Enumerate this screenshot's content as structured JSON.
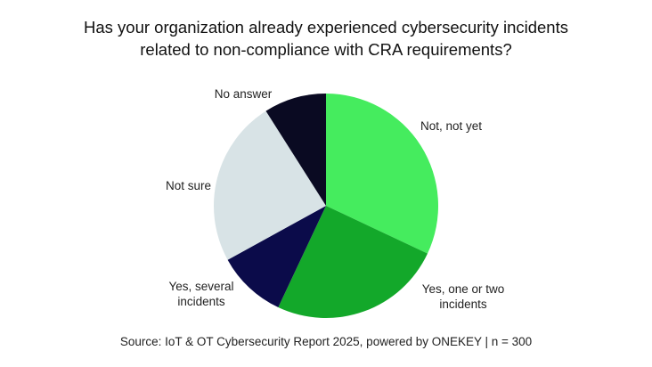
{
  "chart_data": {
    "type": "pie",
    "title_lines": [
      "Has your organization already experienced cybersecurity incidents",
      "related to non-compliance with CRA requirements?"
    ],
    "slices": [
      {
        "label_lines": [
          "Not, not yet"
        ],
        "value": 32,
        "color": "#45ec5e"
      },
      {
        "label_lines": [
          "Yes, one or two",
          "incidents"
        ],
        "value": 25,
        "color": "#13a82a"
      },
      {
        "label_lines": [
          "Yes, several",
          "incidents"
        ],
        "value": 10,
        "color": "#0b0b4a"
      },
      {
        "label_lines": [
          "Not sure"
        ],
        "value": 24,
        "color": "#d8e3e6"
      },
      {
        "label_lines": [
          "No answer"
        ],
        "value": 9,
        "color": "#0a0a22"
      }
    ],
    "start": "12 o'clock, clockwise",
    "source": "Source: IoT & OT Cybersecurity Report 2025, powered by ONEKEY | n = 300"
  }
}
